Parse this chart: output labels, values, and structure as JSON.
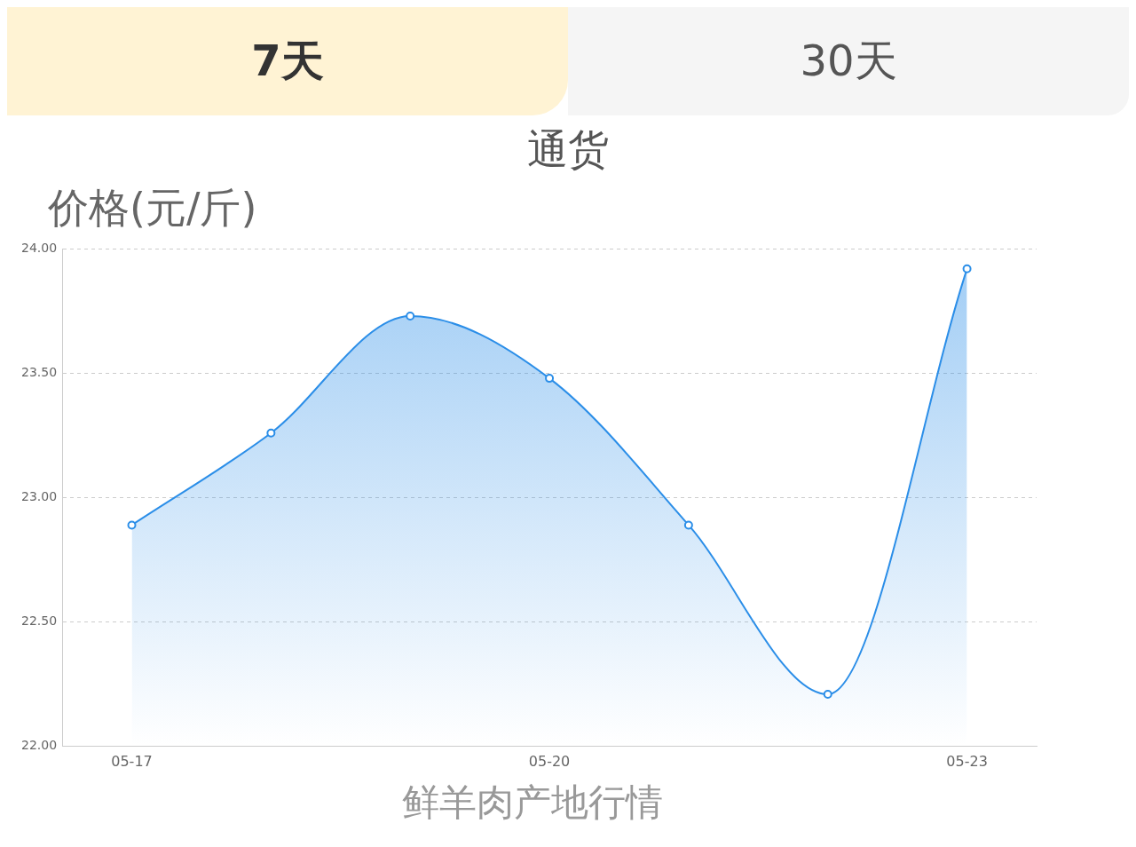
{
  "chart_data": {
    "type": "area",
    "title": "通货",
    "ylabel": "价格(元/斤)",
    "xlabel": "鲜羊肉产地行情",
    "annotations": [
      "7天",
      "30天"
    ],
    "categories": [
      "05-17",
      null,
      null,
      "05-20",
      null,
      null,
      "05-23"
    ],
    "values": [
      22.89,
      23.26,
      23.73,
      23.48,
      22.89,
      22.21,
      23.92
    ],
    "color": "#2b8ee8",
    "ylim": [
      22,
      24
    ],
    "yticks": [
      {
        "value": 22,
        "label": "22.00"
      },
      {
        "value": 22.5,
        "label": "22.50"
      },
      {
        "value": 23,
        "label": "23.00"
      },
      {
        "value": 23.5,
        "label": "23.50"
      },
      {
        "value": 24,
        "label": "24.00"
      }
    ],
    "grid": "y",
    "marker": "circle",
    "legend": false
  }
}
